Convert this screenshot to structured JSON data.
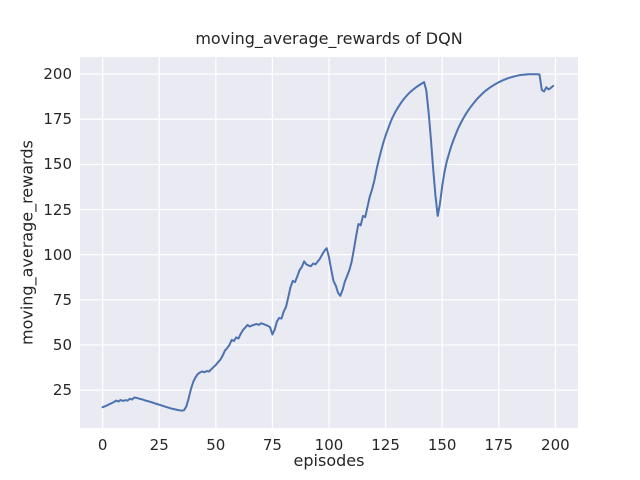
{
  "chart_data": {
    "type": "line",
    "title": "moving_average_rewards of DQN",
    "xlabel": "episodes",
    "ylabel": "moving_average_rewards",
    "xlim": [
      -10,
      210
    ],
    "ylim": [
      4,
      209.5
    ],
    "xticks": [
      0,
      25,
      50,
      75,
      100,
      125,
      150,
      175,
      200
    ],
    "yticks": [
      25,
      50,
      75,
      100,
      125,
      150,
      175,
      200
    ],
    "grid": true,
    "legend": "none",
    "colors": {
      "line": "#4c72b0",
      "plot_background": "#eaeaf2",
      "gridline": "#ffffff",
      "figure_background": "#ffffff",
      "text": "#262626"
    },
    "series": [
      {
        "name": "moving_average_rewards",
        "color": "#4c72b0",
        "x_start": 0,
        "x_step": 1,
        "x": [
          0,
          1,
          2,
          3,
          4,
          5,
          6,
          7,
          8,
          9,
          10,
          11,
          12,
          13,
          14,
          15,
          16,
          17,
          18,
          19,
          20,
          21,
          22,
          23,
          24,
          25,
          26,
          27,
          28,
          29,
          30,
          31,
          32,
          33,
          34,
          35,
          36,
          37,
          38,
          39,
          40,
          41,
          42,
          43,
          44,
          45,
          46,
          47,
          48,
          49,
          50,
          51,
          52,
          53,
          54,
          55,
          56,
          57,
          58,
          59,
          60,
          61,
          62,
          63,
          64,
          65,
          66,
          67,
          68,
          69,
          70,
          71,
          72,
          73,
          74,
          75,
          76,
          77,
          78,
          79,
          80,
          81,
          82,
          83,
          84,
          85,
          86,
          87,
          88,
          89,
          90,
          91,
          92,
          93,
          94,
          95,
          96,
          97,
          98,
          99,
          100,
          101,
          102,
          103,
          104,
          105,
          106,
          107,
          108,
          109,
          110,
          111,
          112,
          113,
          114,
          115,
          116,
          117,
          118,
          119,
          120,
          121,
          122,
          123,
          124,
          125,
          126,
          127,
          128,
          129,
          130,
          131,
          132,
          133,
          134,
          135,
          136,
          137,
          138,
          139,
          140,
          141,
          142,
          143,
          144,
          145,
          146,
          147,
          148,
          149,
          150,
          151,
          152,
          153,
          154,
          155,
          156,
          157,
          158,
          159,
          160,
          161,
          162,
          163,
          164,
          165,
          166,
          167,
          168,
          169,
          170,
          171,
          172,
          173,
          174,
          175,
          176,
          177,
          178,
          179,
          180,
          181,
          182,
          183,
          184,
          185,
          186,
          187,
          188,
          189,
          190,
          191,
          192,
          193,
          194,
          195,
          196,
          197,
          198,
          199
        ],
        "y": [
          15.5,
          16.0,
          16.6,
          17.2,
          17.8,
          18.4,
          19.2,
          18.7,
          19.5,
          19.0,
          19.4,
          19.2,
          20.2,
          19.8,
          20.9,
          20.7,
          20.3,
          20.0,
          19.6,
          19.2,
          18.9,
          18.5,
          18.1,
          17.7,
          17.3,
          16.9,
          16.5,
          16.1,
          15.7,
          15.3,
          14.9,
          14.6,
          14.3,
          14.0,
          13.8,
          13.6,
          13.9,
          16.0,
          20.5,
          25.5,
          29.5,
          32.0,
          33.8,
          34.8,
          35.3,
          34.9,
          35.6,
          35.3,
          36.5,
          37.8,
          38.9,
          40.5,
          41.8,
          44.0,
          46.8,
          48.2,
          50.0,
          52.8,
          52.2,
          54.2,
          53.6,
          56.2,
          58.3,
          59.6,
          61.1,
          60.2,
          60.8,
          61.2,
          61.6,
          61.1,
          62.0,
          61.6,
          61.1,
          60.6,
          59.8,
          55.8,
          58.5,
          63.0,
          65.0,
          64.6,
          68.5,
          71.0,
          76.5,
          82.0,
          85.5,
          84.8,
          88.0,
          91.5,
          93.2,
          96.3,
          94.6,
          94.0,
          93.6,
          95.1,
          94.6,
          96.2,
          97.8,
          100.1,
          102.2,
          103.6,
          98.5,
          91.5,
          85.5,
          82.8,
          78.8,
          77.2,
          80.5,
          85.0,
          88.2,
          91.5,
          96.0,
          103.0,
          110.5,
          117.0,
          116.2,
          121.5,
          120.8,
          126.5,
          132.0,
          136.0,
          141.0,
          147.0,
          152.5,
          157.5,
          162.0,
          166.0,
          169.5,
          172.8,
          175.8,
          178.3,
          180.6,
          182.6,
          184.4,
          186.1,
          187.6,
          189.0,
          190.2,
          191.3,
          192.3,
          193.2,
          194.0,
          194.8,
          195.6,
          191.0,
          179.0,
          164.0,
          148.0,
          133.0,
          121.5,
          128.0,
          138.0,
          145.5,
          151.5,
          156.0,
          160.0,
          163.5,
          166.8,
          169.8,
          172.4,
          174.8,
          177.0,
          179.0,
          180.8,
          182.5,
          184.1,
          185.6,
          187.0,
          188.3,
          189.5,
          190.6,
          191.6,
          192.5,
          193.3,
          194.1,
          194.8,
          195.5,
          196.1,
          196.7,
          197.2,
          197.7,
          198.1,
          198.5,
          198.8,
          199.1,
          199.4,
          199.6,
          199.7,
          199.8,
          199.9,
          200.0,
          200.0,
          200.0,
          200.0,
          199.8,
          191.3,
          190.4,
          192.7,
          191.5,
          192.4,
          193.5
        ]
      }
    ]
  }
}
